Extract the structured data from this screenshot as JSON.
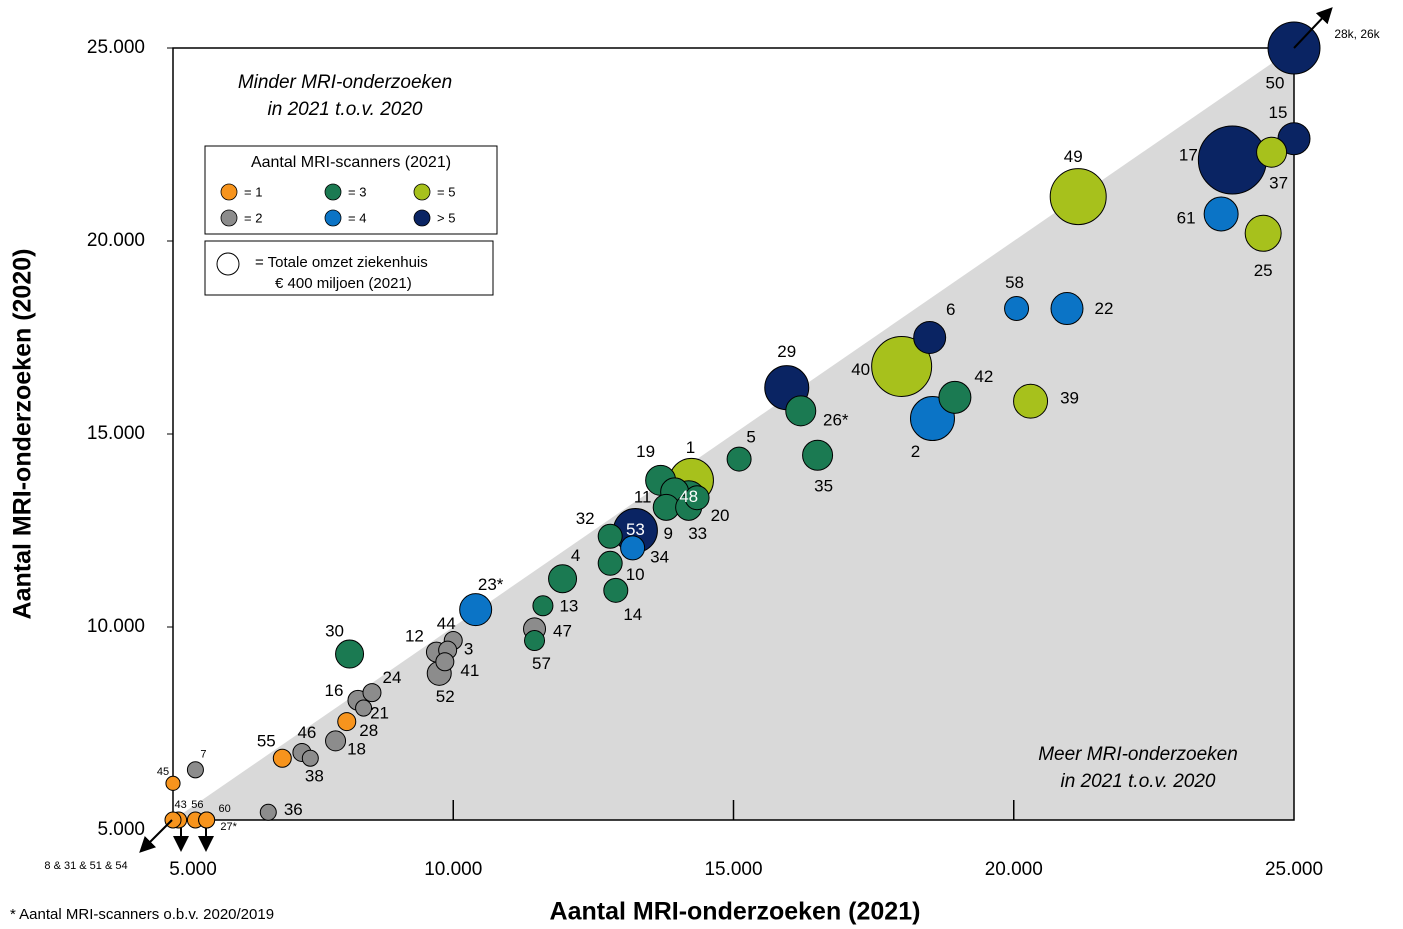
{
  "chart_data": {
    "type": "scatter",
    "x_label": "Aantal MRI-onderzoeken (2021)",
    "y_label": "Aantal MRI-onderzoeken (2020)",
    "annotations": [
      "Minder MRI-onderzoeken",
      "in 2021 t.o.v. 2020",
      "Meer MRI-onderzoeken",
      "in 2021 t.o.v. 2020",
      "* Aantal MRI-scanners o.b.v. 2020/2019",
      "28k, 26k"
    ],
    "legend_title": "Aantal MRI-scanners (2021)",
    "size_legend": {
      "value": 400,
      "lines": [
        "=  Totale omzet ziekenhuis",
        "€ 400 miljoen (2021)"
      ]
    },
    "xlim": [
      5000,
      25000
    ],
    "ylim": [
      5000,
      25000
    ],
    "xticks": [
      {
        "value": 5000,
        "label": "5.000"
      },
      {
        "value": 10000,
        "label": "10.000"
      },
      {
        "value": 15000,
        "label": "15.000"
      },
      {
        "value": 20000,
        "label": "20.000"
      },
      {
        "value": 25000,
        "label": "25.000"
      }
    ],
    "yticks": [
      {
        "value": 5000,
        "label": "5.000"
      },
      {
        "value": 10000,
        "label": "10.000"
      },
      {
        "value": 15000,
        "label": "15.000"
      },
      {
        "value": 20000,
        "label": "20.000"
      },
      {
        "value": 25000,
        "label": "25.000"
      }
    ],
    "series": [
      {
        "name": "= 1",
        "color": "#f7941d",
        "labels": [
          "55",
          "28",
          "45",
          "43",
          "56",
          "60",
          "27*",
          "8 & 31 & 51 & 54"
        ],
        "x": [
          6950,
          8100,
          5000,
          5100,
          5400,
          5600,
          5600,
          5000
        ],
        "values": [
          6600,
          7550,
          5950,
          5000,
          5000,
          5000,
          5000,
          5000
        ],
        "sizes": [
          268,
          268,
          165,
          212,
          212,
          212,
          212,
          212
        ]
      },
      {
        "name": "= 2",
        "color": "#8c8c8c",
        "labels": [
          "7",
          "36",
          "46",
          "38",
          "18",
          "16",
          "21",
          "24",
          "12",
          "44",
          "3",
          "41",
          "52",
          "47"
        ],
        "x": [
          5400,
          6700,
          7300,
          7450,
          7900,
          8300,
          8400,
          8550,
          9700,
          10000,
          9900,
          9850,
          9750,
          11450
        ],
        "values": [
          6300,
          5200,
          6750,
          6600,
          7050,
          8100,
          7900,
          8300,
          9350,
          9650,
          9400,
          9100,
          8800,
          9950
        ],
        "sizes": [
          212,
          212,
          268,
          212,
          331,
          331,
          212,
          268,
          331,
          268,
          268,
          268,
          476,
          400
        ]
      },
      {
        "name": "= 3",
        "color": "#1b7a52",
        "labels": [
          "30",
          "57",
          "13",
          "4",
          "14",
          "10",
          "32",
          "9",
          "11",
          "19",
          "48",
          "33",
          "20",
          "5",
          "35",
          "26*",
          "42"
        ],
        "x": [
          8150,
          11450,
          11600,
          11950,
          12900,
          12800,
          12800,
          13800,
          13950,
          13700,
          14200,
          14200,
          14350,
          15100,
          16500,
          16200,
          18950
        ],
        "values": [
          9300,
          9650,
          10550,
          11250,
          10950,
          11650,
          12350,
          13100,
          13500,
          13800,
          13350,
          13100,
          13350,
          14350,
          14450,
          15600,
          15950
        ],
        "sizes": [
          648,
          331,
          331,
          648,
          476,
          476,
          476,
          559,
          648,
          744,
          955,
          559,
          476,
          476,
          744,
          744,
          846
        ]
      },
      {
        "name": "= 4",
        "color": "#0b74c6",
        "labels": [
          "23*",
          "34",
          "2",
          "58",
          "22",
          "61"
        ],
        "x": [
          10400,
          13200,
          18550,
          20050,
          20950,
          23700
        ],
        "values": [
          10450,
          12050,
          15400,
          18250,
          18250,
          20700
        ],
        "sizes": [
          846,
          476,
          1600,
          476,
          846,
          955
        ]
      },
      {
        "name": "= 5",
        "color": "#a7c11c",
        "labels": [
          "1",
          "40",
          "39",
          "49",
          "25",
          "37"
        ],
        "x": [
          14250,
          18000,
          20300,
          21150,
          24450,
          24600
        ],
        "values": [
          13800,
          16750,
          15850,
          21150,
          20200,
          22300
        ],
        "sizes": [
          1600,
          2975,
          955,
          2592,
          1071,
          744
        ]
      },
      {
        "name": "> 5",
        "color": "#0a2463",
        "labels": [
          "53",
          "29",
          "6",
          "17",
          "15",
          "50"
        ],
        "x": [
          13250,
          15950,
          18500,
          23900,
          25000,
          25000
        ],
        "values": [
          12500,
          16200,
          17500,
          22100,
          22650,
          25000
        ],
        "sizes": [
          1600,
          1600,
          846,
          3822,
          846,
          2234
        ]
      }
    ]
  }
}
